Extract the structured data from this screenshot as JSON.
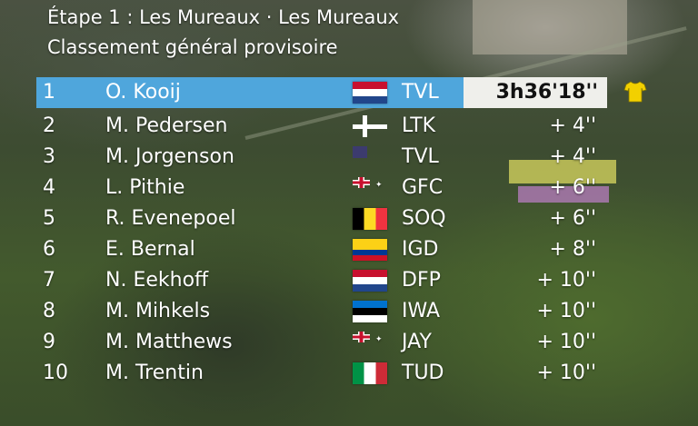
{
  "header": {
    "line1": "Étape 1 : Les Mureaux · Les Mureaux",
    "line2": "Classement général provisoire"
  },
  "colors": {
    "leader_row": "#4fa6dc",
    "leader_time_bg": "#efefeb",
    "jersey": "#f2d000"
  },
  "standings": [
    {
      "pos": "1",
      "name": "O. Kooij",
      "flag": "netherlands-flag-icon",
      "team": "TVL",
      "time": "3h36'18''"
    },
    {
      "pos": "2",
      "name": "M. Pedersen",
      "flag": "denmark-flag-icon",
      "team": "LTK",
      "time": "+ 4''"
    },
    {
      "pos": "3",
      "name": "M. Jorgenson",
      "flag": "usa-flag-icon",
      "team": "TVL",
      "time": "+ 4''"
    },
    {
      "pos": "4",
      "name": "L. Pithie",
      "flag": "new-zealand-flag-icon",
      "team": "GFC",
      "time": "+ 6''"
    },
    {
      "pos": "5",
      "name": "R. Evenepoel",
      "flag": "belgium-flag-icon",
      "team": "SOQ",
      "time": "+ 6''"
    },
    {
      "pos": "6",
      "name": "E. Bernal",
      "flag": "colombia-flag-icon",
      "team": "IGD",
      "time": "+ 8''"
    },
    {
      "pos": "7",
      "name": "N. Eekhoff",
      "flag": "netherlands-flag-icon",
      "team": "DFP",
      "time": "+ 10''"
    },
    {
      "pos": "8",
      "name": "M. Mihkels",
      "flag": "estonia-flag-icon",
      "team": "IWA",
      "time": "+ 10''"
    },
    {
      "pos": "9",
      "name": "M. Matthews",
      "flag": "australia-flag-icon",
      "team": "JAY",
      "time": "+ 10''"
    },
    {
      "pos": "10",
      "name": "M. Trentin",
      "flag": "italy-flag-icon",
      "team": "TUD",
      "time": "+ 10''"
    }
  ],
  "leader_badge": "yellow-jersey-icon"
}
